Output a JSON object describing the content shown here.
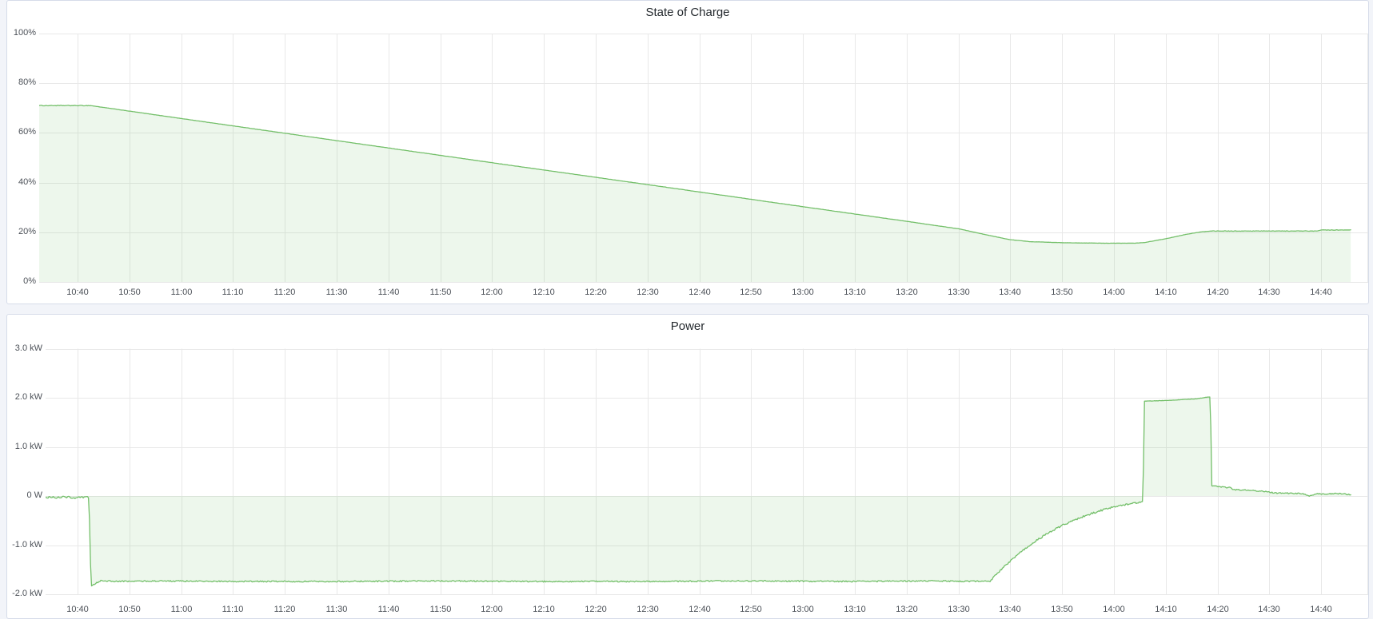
{
  "app": {
    "page_bg": "#f2f4f9",
    "panel_bg": "#ffffff",
    "panel_border": "#d6dce9",
    "grid_color": "#e8e8e8",
    "title_color": "#24292e",
    "axis_text_color": "#4b5057",
    "accent_green": "#73bf69"
  },
  "chart_data": [
    {
      "type": "area",
      "title": "State of Charge",
      "unit": "%",
      "ylim": [
        0,
        100
      ],
      "grid": true,
      "legend": "none",
      "line_color": "#73bf69",
      "fill_color": "rgba(115,191,105,0.13)",
      "x_start": "10:32.5",
      "x_end": "14:45.8",
      "yticks": [
        {
          "value": 100,
          "label": "100%"
        },
        {
          "value": 80,
          "label": "80%"
        },
        {
          "value": 60,
          "label": "60%"
        },
        {
          "value": 40,
          "label": "40%"
        },
        {
          "value": 20,
          "label": "20%"
        },
        {
          "value": 0,
          "label": "0%"
        }
      ],
      "xticks": [
        {
          "time": "10:40",
          "label": "10:40"
        },
        {
          "time": "10:50",
          "label": "10:50"
        },
        {
          "time": "11:00",
          "label": "11:00"
        },
        {
          "time": "11:10",
          "label": "11:10"
        },
        {
          "time": "11:20",
          "label": "11:20"
        },
        {
          "time": "11:30",
          "label": "11:30"
        },
        {
          "time": "11:40",
          "label": "11:40"
        },
        {
          "time": "11:50",
          "label": "11:50"
        },
        {
          "time": "12:00",
          "label": "12:00"
        },
        {
          "time": "12:10",
          "label": "12:10"
        },
        {
          "time": "12:20",
          "label": "12:20"
        },
        {
          "time": "12:30",
          "label": "12:30"
        },
        {
          "time": "12:40",
          "label": "12:40"
        },
        {
          "time": "12:50",
          "label": "12:50"
        },
        {
          "time": "13:00",
          "label": "13:00"
        },
        {
          "time": "13:10",
          "label": "13:10"
        },
        {
          "time": "13:20",
          "label": "13:20"
        },
        {
          "time": "13:30",
          "label": "13:30"
        },
        {
          "time": "13:40",
          "label": "13:40"
        },
        {
          "time": "13:50",
          "label": "13:50"
        },
        {
          "time": "14:00",
          "label": "14:00"
        },
        {
          "time": "14:10",
          "label": "14:10"
        },
        {
          "time": "14:20",
          "label": "14:20"
        },
        {
          "time": "14:30",
          "label": "14:30"
        },
        {
          "time": "14:40",
          "label": "14:40"
        }
      ],
      "points": [
        [
          "10:32.5",
          71
        ],
        [
          "10:42.5",
          71
        ],
        [
          "11:00",
          65.8
        ],
        [
          "11:30",
          56.9
        ],
        [
          "12:00",
          48
        ],
        [
          "12:30",
          39.2
        ],
        [
          "13:00",
          30.3
        ],
        [
          "13:20",
          24.4
        ],
        [
          "13:30",
          21.4
        ],
        [
          "13:36",
          18.7
        ],
        [
          "13:40",
          17
        ],
        [
          "13:44",
          16.2
        ],
        [
          "13:50",
          15.8
        ],
        [
          "13:58",
          15.6
        ],
        [
          "14:04",
          15.6
        ],
        [
          "14:06",
          15.9
        ],
        [
          "14:10",
          17.4
        ],
        [
          "14:14",
          19.2
        ],
        [
          "14:17",
          20.2
        ],
        [
          "14:19",
          20.5
        ],
        [
          "14:30",
          20.5
        ],
        [
          "14:39",
          20.5
        ],
        [
          "14:40",
          20.9
        ],
        [
          "14:45.8",
          20.9
        ]
      ],
      "jitter_segments": [
        {
          "from": "10:32.5",
          "to": "10:43",
          "amp": 0.12
        },
        {
          "from": "10:43",
          "to": "14:19",
          "amp": 0.04
        },
        {
          "from": "14:19",
          "to": "14:45.8",
          "amp": 0.1
        }
      ]
    },
    {
      "type": "area",
      "title": "Power",
      "unit": "kW",
      "ylim": [
        -2.0,
        3.0
      ],
      "grid": true,
      "legend": "none",
      "line_color": "#73bf69",
      "fill_color": "rgba(115,191,105,0.13)",
      "x_start": "10:32.5",
      "x_end": "14:45.8",
      "yticks": [
        {
          "value": 3,
          "label": "3.0 kW"
        },
        {
          "value": 2,
          "label": "2.0 kW"
        },
        {
          "value": 1,
          "label": "1.0 kW"
        },
        {
          "value": 0,
          "label": "0 W"
        },
        {
          "value": -1,
          "label": "-1.0 kW"
        },
        {
          "value": -2,
          "label": "-2.0 kW"
        }
      ],
      "xticks": [
        {
          "time": "10:40",
          "label": "10:40"
        },
        {
          "time": "10:50",
          "label": "10:50"
        },
        {
          "time": "11:00",
          "label": "11:00"
        },
        {
          "time": "11:10",
          "label": "11:10"
        },
        {
          "time": "11:20",
          "label": "11:20"
        },
        {
          "time": "11:30",
          "label": "11:30"
        },
        {
          "time": "11:40",
          "label": "11:40"
        },
        {
          "time": "11:50",
          "label": "11:50"
        },
        {
          "time": "12:00",
          "label": "12:00"
        },
        {
          "time": "12:10",
          "label": "12:10"
        },
        {
          "time": "12:20",
          "label": "12:20"
        },
        {
          "time": "12:30",
          "label": "12:30"
        },
        {
          "time": "12:40",
          "label": "12:40"
        },
        {
          "time": "12:50",
          "label": "12:50"
        },
        {
          "time": "13:00",
          "label": "13:00"
        },
        {
          "time": "13:10",
          "label": "13:10"
        },
        {
          "time": "13:20",
          "label": "13:20"
        },
        {
          "time": "13:30",
          "label": "13:30"
        },
        {
          "time": "13:40",
          "label": "13:40"
        },
        {
          "time": "13:50",
          "label": "13:50"
        },
        {
          "time": "14:00",
          "label": "14:00"
        },
        {
          "time": "14:10",
          "label": "14:10"
        },
        {
          "time": "14:20",
          "label": "14:20"
        },
        {
          "time": "14:30",
          "label": "14:30"
        },
        {
          "time": "14:40",
          "label": "14:40"
        }
      ],
      "points": [
        [
          "10:32.5",
          -0.02
        ],
        [
          "10:35",
          -0.03
        ],
        [
          "10:38",
          -0.02
        ],
        [
          "10:40",
          -0.04
        ],
        [
          "10:42.2",
          -0.02
        ],
        [
          "10:42.6",
          -1.84
        ],
        [
          "10:43.2",
          -1.8
        ],
        [
          "10:44.5",
          -1.72
        ],
        [
          "10:47",
          -1.74
        ],
        [
          "10:55",
          -1.73
        ],
        [
          "11:10",
          -1.74
        ],
        [
          "11:30",
          -1.74
        ],
        [
          "11:50",
          -1.73
        ],
        [
          "12:10",
          -1.74
        ],
        [
          "12:30",
          -1.74
        ],
        [
          "12:50",
          -1.73
        ],
        [
          "13:10",
          -1.74
        ],
        [
          "13:25",
          -1.73
        ],
        [
          "13:36",
          -1.74
        ],
        [
          "13:38",
          -1.52
        ],
        [
          "13:40",
          -1.33
        ],
        [
          "13:42",
          -1.14
        ],
        [
          "13:45",
          -0.91
        ],
        [
          "13:48",
          -0.71
        ],
        [
          "13:51",
          -0.55
        ],
        [
          "13:54",
          -0.42
        ],
        [
          "13:57",
          -0.31
        ],
        [
          "14:00",
          -0.22
        ],
        [
          "14:03",
          -0.16
        ],
        [
          "14:05.6",
          -0.11
        ],
        [
          "14:05.9",
          1.93
        ],
        [
          "14:09",
          1.94
        ],
        [
          "14:13",
          1.96
        ],
        [
          "14:16",
          1.98
        ],
        [
          "14:18.6",
          2.02
        ],
        [
          "14:18.9",
          0.21
        ],
        [
          "14:21",
          0.18
        ],
        [
          "14:22.5",
          0.17
        ],
        [
          "14:23",
          0.13
        ],
        [
          "14:26",
          0.12
        ],
        [
          "14:28",
          0.1
        ],
        [
          "14:30",
          0.08
        ],
        [
          "14:31",
          0.06
        ],
        [
          "14:34",
          0.055
        ],
        [
          "14:36.5",
          0.05
        ],
        [
          "14:37.8",
          0.0
        ],
        [
          "14:38.6",
          0.02
        ],
        [
          "14:39.3",
          0.05
        ],
        [
          "14:41",
          0.04
        ],
        [
          "14:43",
          0.05
        ],
        [
          "14:45.8",
          0.03
        ]
      ],
      "jitter_segments": [
        {
          "from": "10:32.5",
          "to": "10:42.2",
          "amp": 0.022
        },
        {
          "from": "10:42.6",
          "to": "13:36",
          "amp": 0.013
        },
        {
          "from": "13:36",
          "to": "14:05.6",
          "amp": 0.018
        },
        {
          "from": "14:05.9",
          "to": "14:18.6",
          "amp": 0.004
        },
        {
          "from": "14:18.9",
          "to": "14:45.8",
          "amp": 0.011
        }
      ]
    }
  ]
}
